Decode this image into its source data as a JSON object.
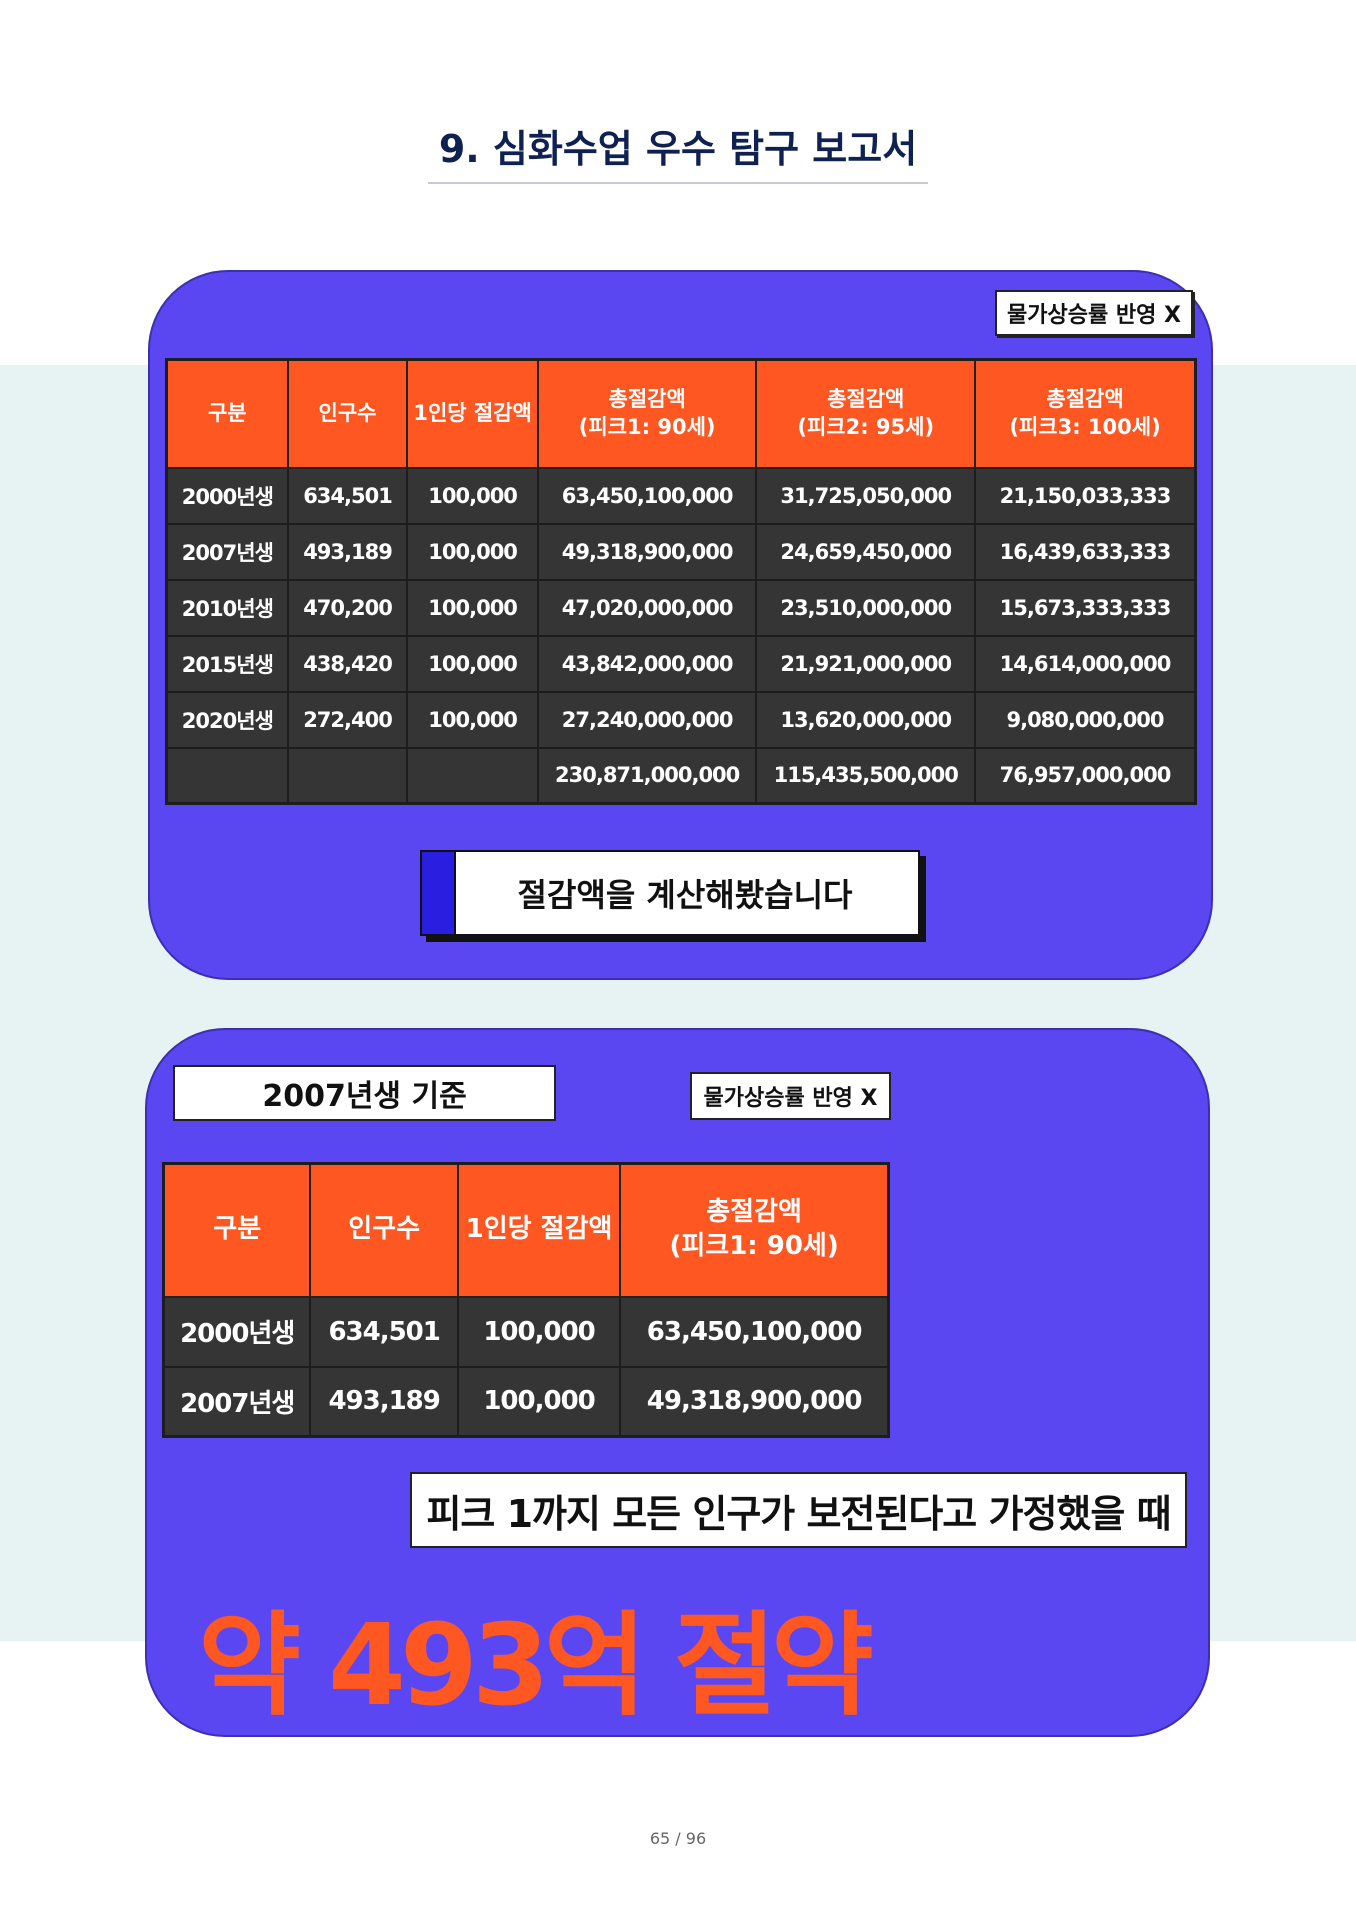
{
  "page_title": "9. 심화수업 우수 탐구 보고서",
  "section1": {
    "badge": "물가상승률 반영 X",
    "headers": [
      "구분",
      "인구수",
      "1인당 절감액",
      "총절감액\n(피크1: 90세)",
      "총절감액\n(피크2: 95세)",
      "총절감액\n(피크3: 100세)"
    ],
    "rows": [
      [
        "2000년생",
        "634,501",
        "100,000",
        "63,450,100,000",
        "31,725,050,000",
        "21,150,033,333"
      ],
      [
        "2007년생",
        "493,189",
        "100,000",
        "49,318,900,000",
        "24,659,450,000",
        "16,439,633,333"
      ],
      [
        "2010년생",
        "470,200",
        "100,000",
        "47,020,000,000",
        "23,510,000,000",
        "15,673,333,333"
      ],
      [
        "2015년생",
        "438,420",
        "100,000",
        "43,842,000,000",
        "21,921,000,000",
        "14,614,000,000"
      ],
      [
        "2020년생",
        "272,400",
        "100,000",
        "27,240,000,000",
        "13,620,000,000",
        "9,080,000,000"
      ],
      [
        "",
        "",
        "",
        "230,871,000,000",
        "115,435,500,000",
        "76,957,000,000"
      ]
    ],
    "callout": "절감액을 계산해봤습니다"
  },
  "section2": {
    "basis_badge": "2007년생 기준",
    "badge": "물가상승률 반영 X",
    "headers": [
      "구분",
      "인구수",
      "1인당 절감액",
      "총절감액\n(피크1: 90세)"
    ],
    "rows": [
      [
        "2000년생",
        "634,501",
        "100,000",
        "63,450,100,000"
      ],
      [
        "2007년생",
        "493,189",
        "100,000",
        "49,318,900,000"
      ]
    ],
    "caption": "피크 1까지 모든 인구가 보전된다고 가정했을 때",
    "highlight": "약 493억 절약"
  },
  "page_number": "65 / 96",
  "colors": {
    "card": "#5b47f1",
    "header": "#ff5722",
    "row": "#353535",
    "title": "#0f2150"
  }
}
